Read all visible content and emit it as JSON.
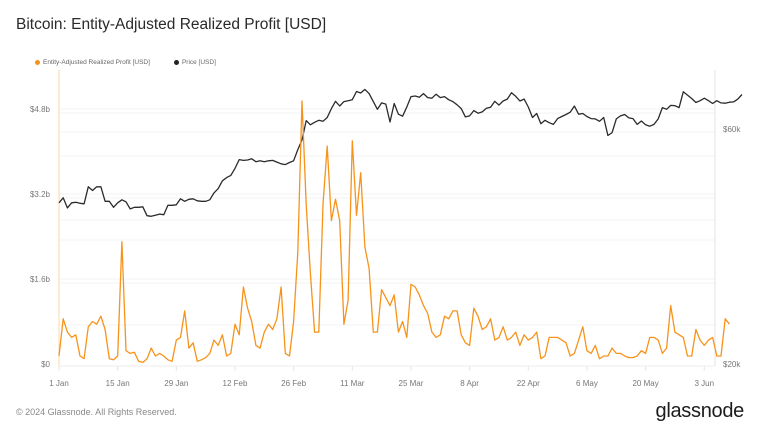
{
  "header": {
    "title": "Bitcoin: Entity-Adjusted Realized Profit [USD]"
  },
  "legend": [
    {
      "label": "Entity-Adjusted Realized Profit [USD]",
      "color": "#f7931a"
    },
    {
      "label": "Price [USD]",
      "color": "#222222"
    }
  ],
  "footer": {
    "copyright": "© 2024 Glassnode. All Rights Reserved.",
    "logo": "glassnode"
  },
  "chart_data": {
    "type": "line",
    "title": "Bitcoin: Entity-Adjusted Realized Profit [USD]",
    "xlabel": "",
    "ylabel_left": "Entity-Adjusted Realized Profit [USD]",
    "ylabel_right": "Price [USD]",
    "x_ticks": [
      "1 Jan",
      "15 Jan",
      "29 Jan",
      "12 Feb",
      "26 Feb",
      "11 Mar",
      "25 Mar",
      "8 Apr",
      "22 Apr",
      "6 May",
      "20 May",
      "3 Jun"
    ],
    "y_left_ticks": [
      "$0",
      "$1.6b",
      "$3.2b",
      "$4.8b"
    ],
    "y_left_range": [
      0,
      5.6
    ],
    "y_right_ticks": [
      "$20k",
      "$60k"
    ],
    "y_right_scale": "log",
    "grid": true,
    "legend_position": "top-left",
    "x_start": "2024-01-01",
    "x_step_days": 1,
    "series": [
      {
        "name": "Entity-Adjusted Realized Profit [USD]",
        "axis": "left",
        "unit": "billion USD",
        "color": "#f7931a",
        "values": [
          0.15,
          0.85,
          0.6,
          0.5,
          0.55,
          0.15,
          0.1,
          0.7,
          0.8,
          0.75,
          0.9,
          0.65,
          0.1,
          0.08,
          0.15,
          2.3,
          0.25,
          0.2,
          0.22,
          0.05,
          0.03,
          0.1,
          0.3,
          0.15,
          0.2,
          0.15,
          0.08,
          0.05,
          0.45,
          0.5,
          1.0,
          0.3,
          0.4,
          0.05,
          0.08,
          0.12,
          0.2,
          0.45,
          0.35,
          0.55,
          0.15,
          0.2,
          0.75,
          0.55,
          1.45,
          1.05,
          0.8,
          0.35,
          0.3,
          0.6,
          0.75,
          0.65,
          0.85,
          1.45,
          0.2,
          0.15,
          0.8,
          2.1,
          4.95,
          3.0,
          1.7,
          0.6,
          0.6,
          3.0,
          4.1,
          2.7,
          3.1,
          2.7,
          0.75,
          1.2,
          4.2,
          2.8,
          3.6,
          2.2,
          1.8,
          0.6,
          0.6,
          1.4,
          1.25,
          1.1,
          1.3,
          0.6,
          0.8,
          0.5,
          1.5,
          1.45,
          1.3,
          1.1,
          0.95,
          0.6,
          0.5,
          0.55,
          0.9,
          0.85,
          1.0,
          1.0,
          0.55,
          0.4,
          0.35,
          1.05,
          0.9,
          0.65,
          0.7,
          0.85,
          0.45,
          0.5,
          0.7,
          0.45,
          0.5,
          0.6,
          0.35,
          0.55,
          0.45,
          0.5,
          0.6,
          0.1,
          0.15,
          0.5,
          0.5,
          0.5,
          0.45,
          0.4,
          0.15,
          0.2,
          0.45,
          0.7,
          0.25,
          0.2,
          0.35,
          0.1,
          0.15,
          0.15,
          0.3,
          0.2,
          0.2,
          0.15,
          0.12,
          0.12,
          0.15,
          0.25,
          0.2,
          0.5,
          0.5,
          0.45,
          0.2,
          0.3,
          1.1,
          0.6,
          0.55,
          0.5,
          0.15,
          0.15,
          0.65,
          0.45,
          0.35,
          0.45,
          0.5,
          0.15,
          0.15,
          0.85,
          0.75
        ]
      },
      {
        "name": "Price [USD]",
        "axis": "right",
        "unit": "thousand USD",
        "color": "#222222",
        "values": [
          42.5,
          43.5,
          41.5,
          42.5,
          42.6,
          42.4,
          42.3,
          45.8,
          45.0,
          45.8,
          45.8,
          42.8,
          42.8,
          41.6,
          42.5,
          43.1,
          42.7,
          41.3,
          41.6,
          41.6,
          41.7,
          40.0,
          39.9,
          40.1,
          40.3,
          40.2,
          42.0,
          42.0,
          42.1,
          43.3,
          42.8,
          43.2,
          43.3,
          42.9,
          42.8,
          42.8,
          43.1,
          44.5,
          45.4,
          47.1,
          47.8,
          48.3,
          49.9,
          52.0,
          51.8,
          51.9,
          52.2,
          51.5,
          51.7,
          51.5,
          51.7,
          51.8,
          51.4,
          51.0,
          50.8,
          51.3,
          51.7,
          54.5,
          57.0,
          62.4,
          61.2,
          61.9,
          62.5,
          62.2,
          63.3,
          66.0,
          68.3,
          66.8,
          68.2,
          68.5,
          68.8,
          71.5,
          71.0,
          72.2,
          70.8,
          68.2,
          65.8,
          67.8,
          67.4,
          62.0,
          67.6,
          64.3,
          63.7,
          66.5,
          69.8,
          70.0,
          69.6,
          70.8,
          69.5,
          69.3,
          70.6,
          69.5,
          69.8,
          68.8,
          68.2,
          67.2,
          66.0,
          63.5,
          63.8,
          65.4,
          64.6,
          65.0,
          66.1,
          66.4,
          68.3,
          67.1,
          68.4,
          69.0,
          71.1,
          69.9,
          68.4,
          69.0,
          66.5,
          63.3,
          64.5,
          61.5,
          62.5,
          61.8,
          61.3,
          63.0,
          63.6,
          64.2,
          64.9,
          66.8,
          64.3,
          64.5,
          63.6,
          63.0,
          62.9,
          62.2,
          63.3,
          58.2,
          59.0,
          62.9,
          63.8,
          64.2,
          63.2,
          63.0,
          61.3,
          62.3,
          61.2,
          60.8,
          61.3,
          62.9,
          66.3,
          65.8,
          67.0,
          66.9,
          66.3,
          71.4,
          70.3,
          69.2,
          67.9,
          68.5,
          69.3,
          68.5,
          67.6,
          68.5,
          67.8,
          67.7,
          68.0,
          68.1,
          69.0,
          70.5
        ]
      }
    ]
  }
}
